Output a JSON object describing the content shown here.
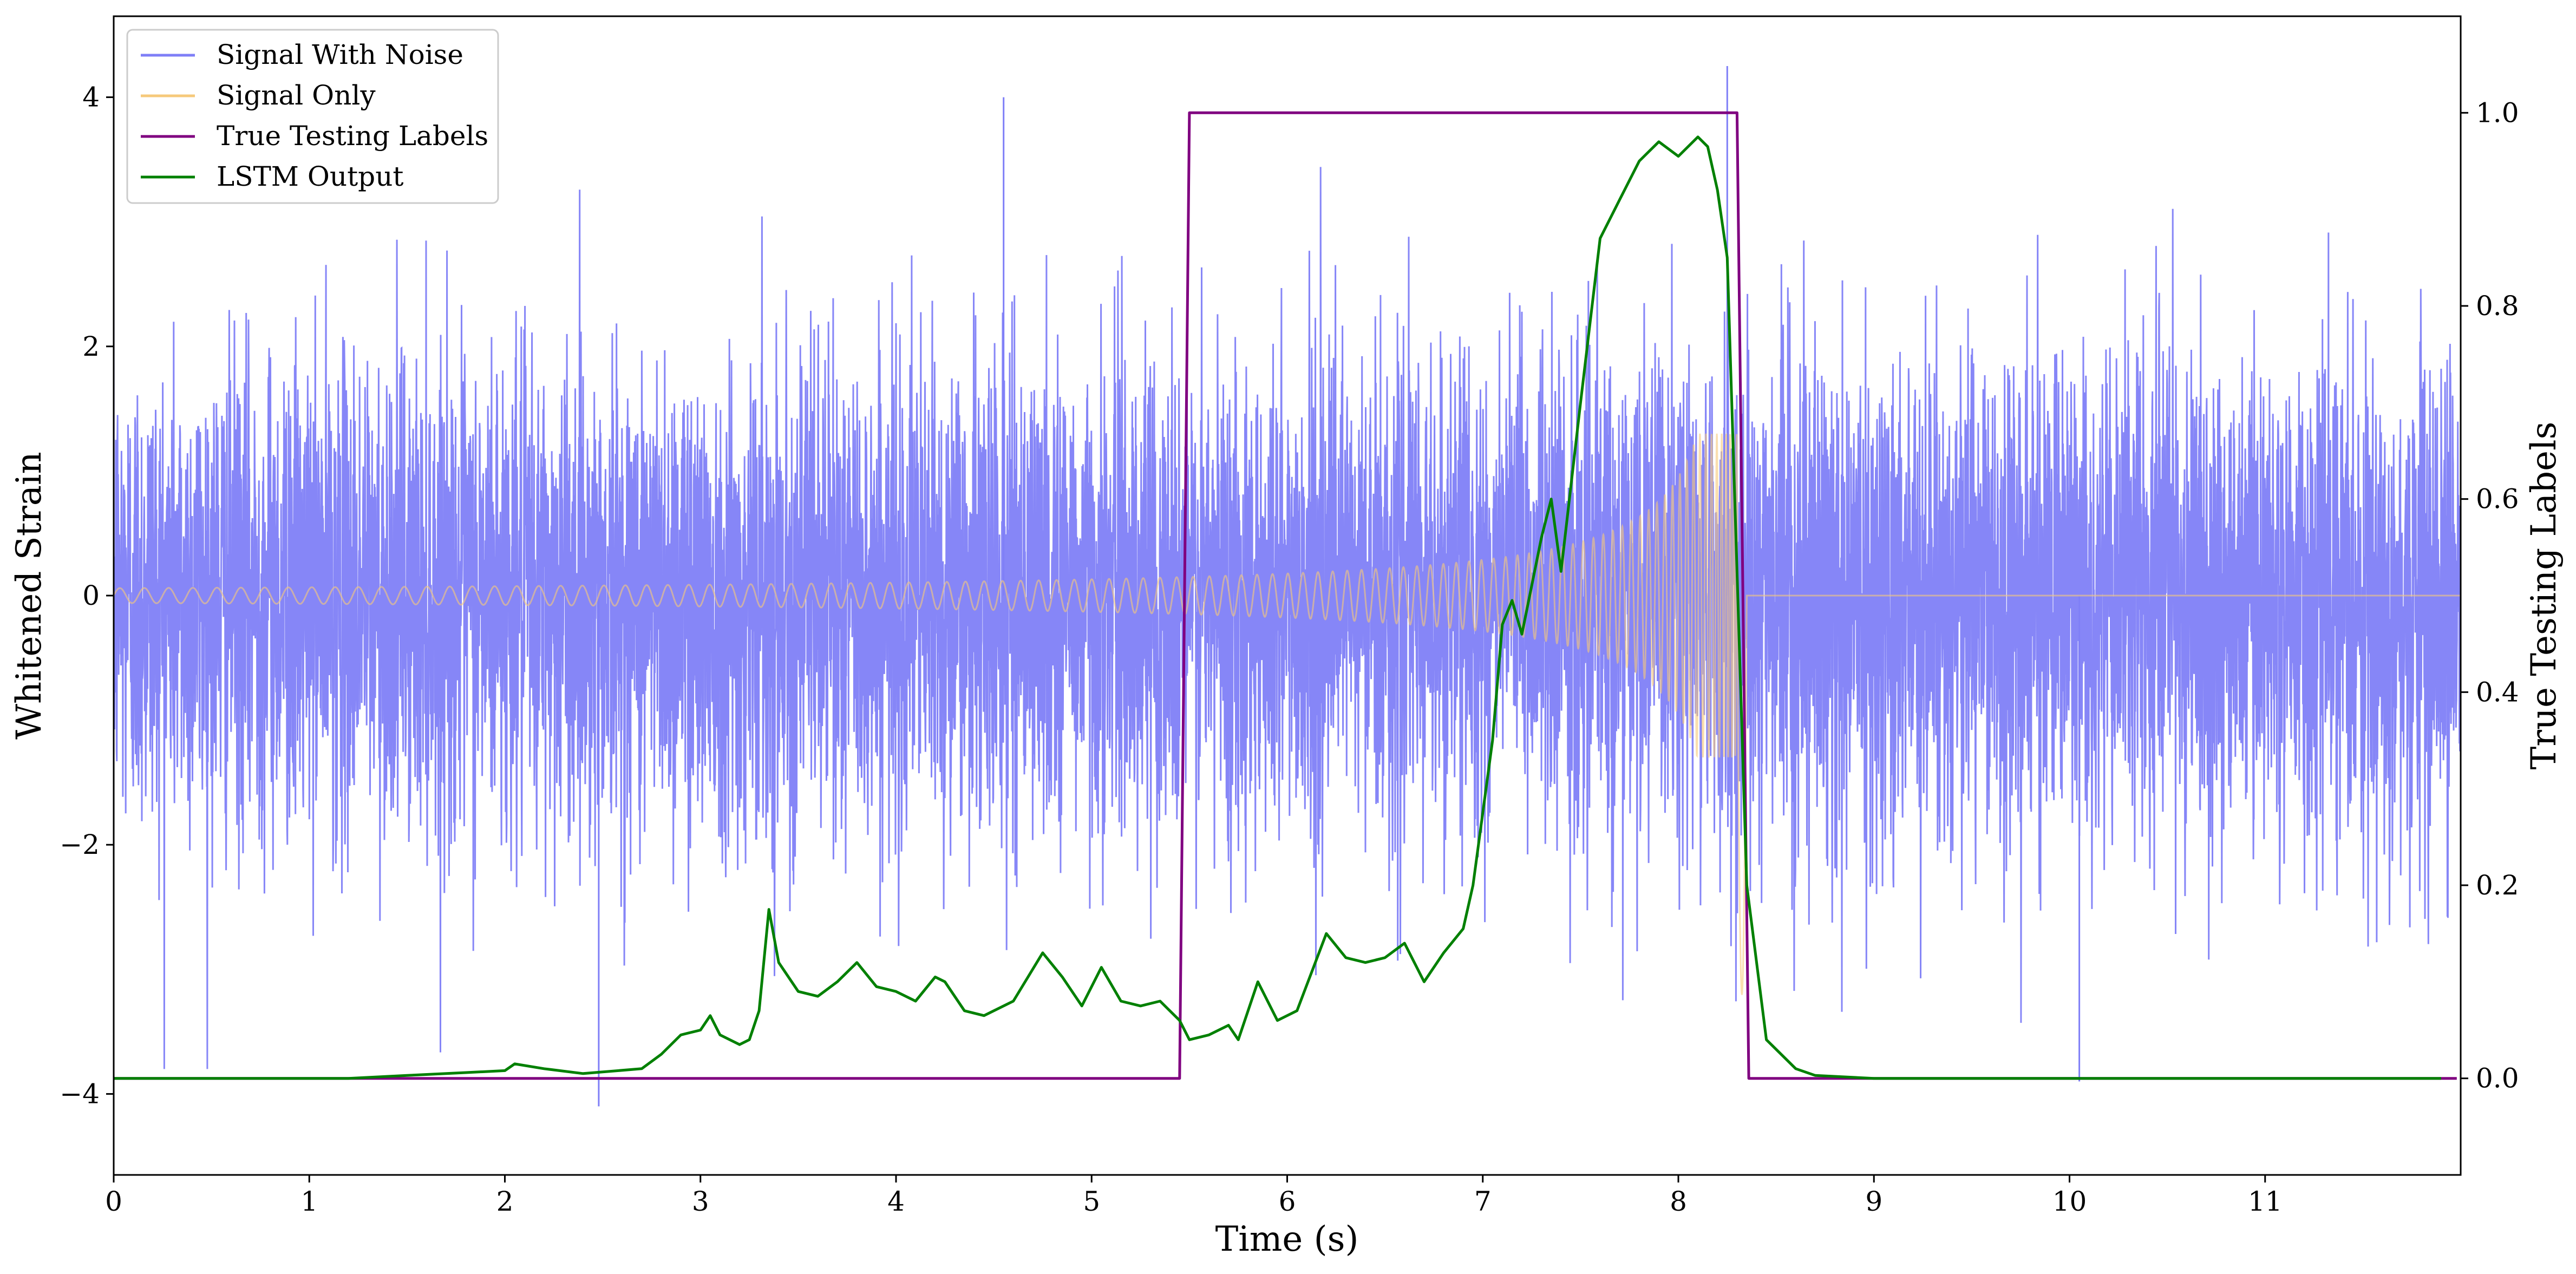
{
  "chart_data": {
    "type": "line",
    "xlabel": "Time (s)",
    "ylabel": "Whitened Strain",
    "ylabel_right": "True Testing Labels",
    "xlim": [
      0,
      12
    ],
    "ylim": [
      -4.65,
      4.65
    ],
    "ylim_right": [
      -0.1,
      1.1
    ],
    "x_ticks": [
      0,
      1,
      2,
      3,
      4,
      5,
      6,
      7,
      8,
      9,
      10,
      11
    ],
    "y_ticks": [
      -4,
      -2,
      0,
      2,
      4
    ],
    "y_ticks_right": [
      0.0,
      0.2,
      0.4,
      0.6,
      0.8,
      1.0
    ],
    "legend_position": "top-left",
    "series": [
      {
        "name": "Signal With Noise",
        "axis": "left",
        "color": "#7f7ff7",
        "description_type": "gaussian noise, roughly within -4 to 4",
        "noise_sigma": 0.95,
        "noise_peaks": [
          {
            "x": 8.25,
            "y": 4.25
          },
          {
            "x": 4.55,
            "y": 4.0
          },
          {
            "x": 2.48,
            "y": -4.1
          },
          {
            "x": 10.05,
            "y": -3.9
          }
        ]
      },
      {
        "name": "Signal Only",
        "axis": "left",
        "color": "#f6c97a",
        "chirp": {
          "t_start": 0,
          "t_merge": 8.3,
          "t_end_drop": 8.35,
          "amp_start": 0.06,
          "amp_peak": 1.3,
          "min_y": -3.2
        }
      },
      {
        "name": "True Testing Labels",
        "axis": "right",
        "color": "#800080",
        "points": [
          [
            0,
            0
          ],
          [
            5.45,
            0
          ],
          [
            5.5,
            1.0
          ],
          [
            8.3,
            1.0
          ],
          [
            8.36,
            0
          ],
          [
            11.98,
            0
          ]
        ]
      },
      {
        "name": "LSTM Output",
        "axis": "right",
        "color": "#008000",
        "points": [
          [
            0,
            0
          ],
          [
            1.2,
            0
          ],
          [
            1.5,
            0.003
          ],
          [
            1.8,
            0.006
          ],
          [
            2.0,
            0.008
          ],
          [
            2.05,
            0.015
          ],
          [
            2.2,
            0.01
          ],
          [
            2.4,
            0.005
          ],
          [
            2.7,
            0.01
          ],
          [
            2.8,
            0.025
          ],
          [
            2.9,
            0.045
          ],
          [
            3.0,
            0.05
          ],
          [
            3.05,
            0.065
          ],
          [
            3.1,
            0.045
          ],
          [
            3.2,
            0.035
          ],
          [
            3.25,
            0.04
          ],
          [
            3.3,
            0.07
          ],
          [
            3.35,
            0.175
          ],
          [
            3.4,
            0.12
          ],
          [
            3.5,
            0.09
          ],
          [
            3.6,
            0.085
          ],
          [
            3.7,
            0.1
          ],
          [
            3.8,
            0.12
          ],
          [
            3.9,
            0.095
          ],
          [
            4.0,
            0.09
          ],
          [
            4.1,
            0.08
          ],
          [
            4.2,
            0.105
          ],
          [
            4.25,
            0.1
          ],
          [
            4.35,
            0.07
          ],
          [
            4.45,
            0.065
          ],
          [
            4.6,
            0.08
          ],
          [
            4.75,
            0.13
          ],
          [
            4.85,
            0.105
          ],
          [
            4.95,
            0.075
          ],
          [
            5.05,
            0.115
          ],
          [
            5.15,
            0.08
          ],
          [
            5.25,
            0.075
          ],
          [
            5.35,
            0.08
          ],
          [
            5.45,
            0.06
          ],
          [
            5.5,
            0.04
          ],
          [
            5.6,
            0.045
          ],
          [
            5.7,
            0.055
          ],
          [
            5.75,
            0.04
          ],
          [
            5.85,
            0.1
          ],
          [
            5.95,
            0.06
          ],
          [
            6.05,
            0.07
          ],
          [
            6.2,
            0.15
          ],
          [
            6.3,
            0.125
          ],
          [
            6.4,
            0.12
          ],
          [
            6.5,
            0.125
          ],
          [
            6.6,
            0.14
          ],
          [
            6.7,
            0.1
          ],
          [
            6.8,
            0.13
          ],
          [
            6.9,
            0.155
          ],
          [
            6.95,
            0.2
          ],
          [
            7.05,
            0.35
          ],
          [
            7.1,
            0.47
          ],
          [
            7.15,
            0.495
          ],
          [
            7.2,
            0.46
          ],
          [
            7.3,
            0.56
          ],
          [
            7.35,
            0.6
          ],
          [
            7.4,
            0.525
          ],
          [
            7.5,
            0.7
          ],
          [
            7.6,
            0.87
          ],
          [
            7.7,
            0.91
          ],
          [
            7.8,
            0.95
          ],
          [
            7.9,
            0.97
          ],
          [
            8.0,
            0.955
          ],
          [
            8.1,
            0.975
          ],
          [
            8.15,
            0.965
          ],
          [
            8.2,
            0.92
          ],
          [
            8.25,
            0.85
          ],
          [
            8.35,
            0.2
          ],
          [
            8.45,
            0.04
          ],
          [
            8.6,
            0.01
          ],
          [
            8.7,
            0.003
          ],
          [
            9.0,
            0
          ],
          [
            11.9,
            0
          ]
        ]
      }
    ]
  }
}
